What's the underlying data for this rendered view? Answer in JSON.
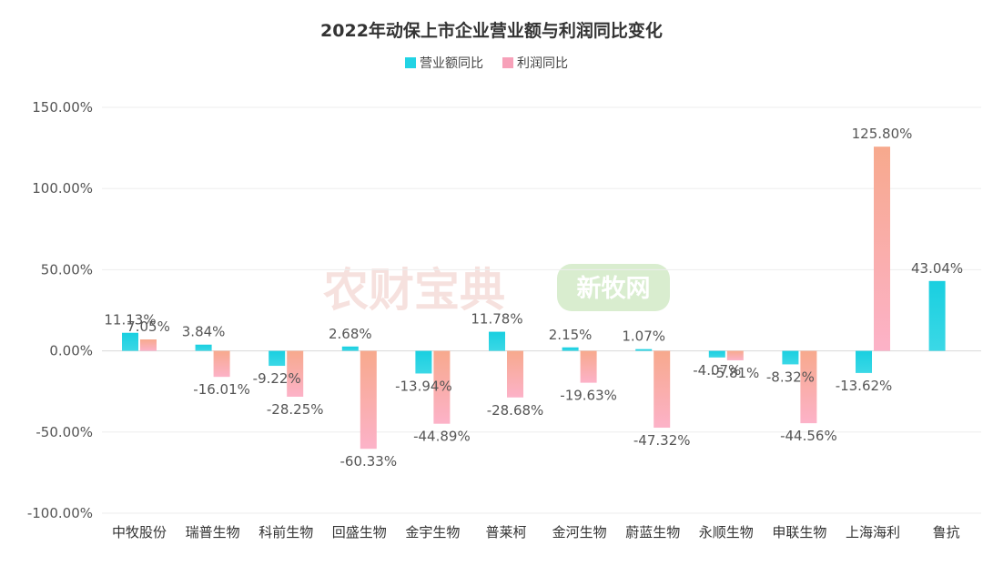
{
  "chart_data": {
    "type": "bar",
    "title": "2022年动保上市企业营业额与利润同比变化",
    "categories": [
      "中牧股份",
      "瑞普生物",
      "科前生物",
      "回盛生物",
      "金宇生物",
      "普莱柯",
      "金河生物",
      "蔚蓝生物",
      "永顺生物",
      "申联生物",
      "上海海利",
      "鲁抗"
    ],
    "series": [
      {
        "name": "营业额同比",
        "color": "#22d3e4",
        "values": [
          11.13,
          3.84,
          -9.22,
          2.68,
          -13.94,
          11.78,
          2.15,
          1.07,
          -4.07,
          -8.32,
          -13.62,
          43.04
        ],
        "labels": [
          "11.13%",
          "3.84%",
          "-9.22%",
          "2.68%",
          "-13.94%",
          "11.78%",
          "2.15%",
          "1.07%",
          "-4.07%",
          "-8.32%",
          "-13.62%",
          "43.04%"
        ]
      },
      {
        "name": "利润同比",
        "color": "#f7a1b9",
        "values": [
          7.05,
          -16.01,
          -28.25,
          -60.33,
          -44.89,
          -28.68,
          -19.63,
          -47.32,
          -5.81,
          -44.56,
          125.8,
          null
        ],
        "labels": [
          "7.05%",
          "-16.01%",
          "-28.25%",
          "-60.33%",
          "-44.89%",
          "-28.68%",
          "-19.63%",
          "-47.32%",
          "-5.81%",
          "-44.56%",
          "125.80%",
          ""
        ]
      }
    ],
    "yticks": [
      "150.00%",
      "100.00%",
      "50.00%",
      "0.00%",
      "-50.00%",
      "-100.00%"
    ],
    "ylim": [
      -100,
      150
    ],
    "grid": true,
    "legend_position": "top-center"
  },
  "watermarks": [
    "农财宝典",
    "新牧网"
  ]
}
